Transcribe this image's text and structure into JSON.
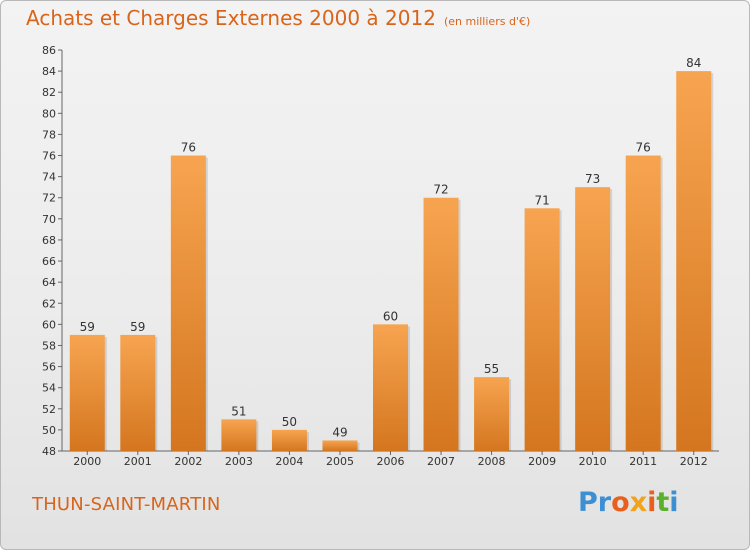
{
  "header": {
    "title": "Achats et Charges Externes 2000 à 2012",
    "subtitle": "(en milliers d'€)"
  },
  "footer": {
    "commune": "THUN-SAINT-MARTIN",
    "logo": [
      "P",
      "r",
      "o",
      "x",
      "i",
      "t",
      "i"
    ]
  },
  "colors": {
    "accent": "#d9641a",
    "bar_light": "#f7a450",
    "bar_dark": "#d4761f",
    "logo_letters": [
      "#3d8fd4",
      "#3d8fd4",
      "#e8601c",
      "#f0a31c",
      "#e8601c",
      "#5bb02c",
      "#3d8fd4"
    ]
  },
  "chart_data": {
    "type": "bar",
    "title": "Achats et Charges Externes 2000 à 2012",
    "subtitle": "(en milliers d'€)",
    "categories": [
      "2000",
      "2001",
      "2002",
      "2003",
      "2004",
      "2005",
      "2006",
      "2007",
      "2008",
      "2009",
      "2010",
      "2011",
      "2012"
    ],
    "values": [
      59,
      59,
      76,
      51,
      50,
      49,
      60,
      72,
      55,
      71,
      73,
      76,
      84
    ],
    "ylim": [
      48,
      86
    ],
    "yticks": [
      48,
      50,
      52,
      54,
      56,
      58,
      60,
      62,
      64,
      66,
      68,
      70,
      72,
      74,
      76,
      78,
      80,
      82,
      84,
      86
    ],
    "grid": false,
    "legend": "none"
  }
}
